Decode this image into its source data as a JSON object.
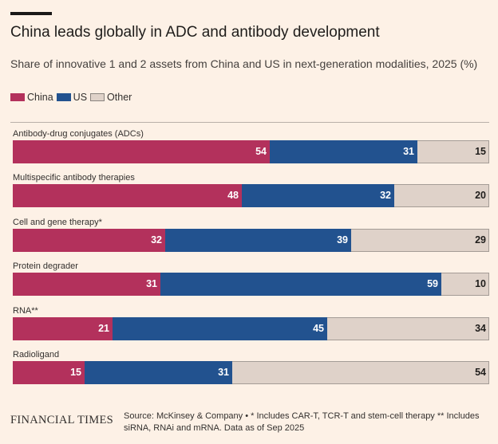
{
  "header": {
    "title": "China leads globally in ADC and antibody development",
    "subtitle": "Share of innovative 1 and 2 assets from China and US in next-generation modalities, 2025 (%)"
  },
  "colors": {
    "china": "#b3315c",
    "us": "#22528f",
    "other": "#dfd2c9",
    "background": "#fdf1e6"
  },
  "legend": {
    "items": [
      {
        "label": "China",
        "color": "#b3315c"
      },
      {
        "label": "US",
        "color": "#22528f"
      },
      {
        "label": "Other",
        "color": "#dfd2c9"
      }
    ]
  },
  "chart_data": {
    "type": "bar",
    "orientation": "horizontal",
    "stacked": true,
    "title": "China leads globally in ADC and antibody development",
    "subtitle": "Share of innovative 1 and 2 assets from China and US in next-generation modalities, 2025 (%)",
    "xlabel": "",
    "ylabel": "",
    "xlim": [
      0,
      100
    ],
    "legend_position": "top-left",
    "categories": [
      "Antibody-drug conjugates (ADCs)",
      "Multispecific antibody therapies",
      "Cell and gene therapy*",
      "Protein degrader",
      "RNA**",
      "Radioligand"
    ],
    "series": [
      {
        "name": "China",
        "values": [
          54,
          48,
          32,
          31,
          21,
          15
        ]
      },
      {
        "name": "US",
        "values": [
          31,
          32,
          39,
          59,
          45,
          31
        ]
      },
      {
        "name": "Other",
        "values": [
          15,
          20,
          29,
          10,
          34,
          54
        ]
      }
    ]
  },
  "footer": {
    "brand": "FINANCIAL TIMES",
    "source": "Source: McKinsey & Company • * Includes CAR-T, TCR-T and stem-cell therapy ** Includes siRNA, RNAi and mRNA. Data as of Sep 2025"
  }
}
